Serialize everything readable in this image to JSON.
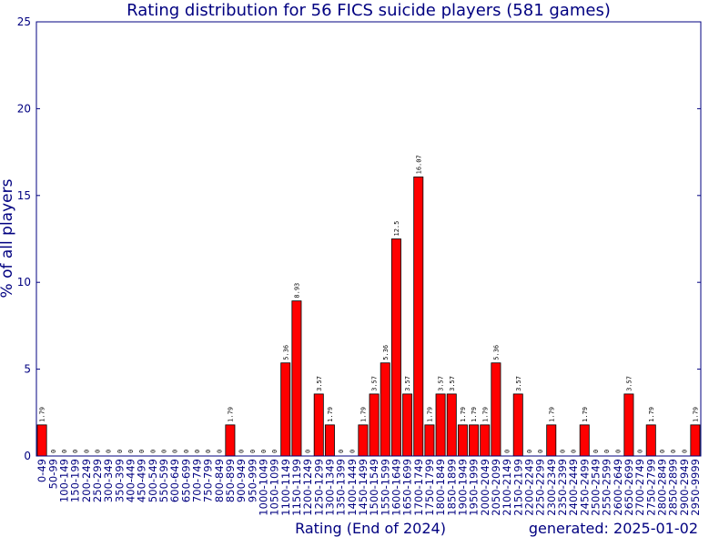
{
  "chart_data": {
    "type": "bar",
    "title": "Rating distribution for 56 FICS suicide players (581 games)",
    "xlabel": "Rating (End of 2024)",
    "ylabel": "% of all players",
    "generated": "generated: 2025-01-02",
    "ylim": [
      0,
      25
    ],
    "yticks": [
      0,
      5,
      10,
      15,
      20,
      25
    ],
    "bar_color": "#ff0000",
    "axis_color": "#000080",
    "categories": [
      "0-49",
      "50-99",
      "100-149",
      "150-199",
      "200-249",
      "250-299",
      "300-349",
      "350-399",
      "400-449",
      "450-499",
      "500-549",
      "550-599",
      "600-649",
      "650-699",
      "700-749",
      "750-799",
      "800-849",
      "850-899",
      "900-949",
      "950-999",
      "1000-1049",
      "1050-1099",
      "1100-1149",
      "1150-1199",
      "1200-1249",
      "1250-1299",
      "1300-1349",
      "1350-1399",
      "1400-1449",
      "1450-1499",
      "1500-1549",
      "1550-1599",
      "1600-1649",
      "1650-1699",
      "1700-1749",
      "1750-1799",
      "1800-1849",
      "1850-1899",
      "1900-1949",
      "1950-1999",
      "2000-2049",
      "2050-2099",
      "2100-2149",
      "2150-2199",
      "2200-2249",
      "2250-2299",
      "2300-2349",
      "2350-2399",
      "2400-2449",
      "2450-2499",
      "2500-2549",
      "2550-2599",
      "2600-2649",
      "2650-2699",
      "2700-2749",
      "2750-2799",
      "2800-2849",
      "2850-2899",
      "2900-2949",
      "2950-9999"
    ],
    "values": [
      1.79,
      0,
      0,
      0,
      0,
      0,
      0,
      0,
      0,
      0,
      0,
      0,
      0,
      0,
      0,
      0,
      0,
      1.79,
      0,
      0,
      0,
      0,
      5.36,
      8.93,
      0,
      3.57,
      1.79,
      0,
      0,
      1.79,
      3.57,
      5.36,
      12.5,
      3.57,
      16.07,
      1.79,
      3.57,
      3.57,
      1.79,
      1.79,
      1.79,
      5.36,
      0,
      3.57,
      0,
      0,
      1.79,
      0,
      0,
      1.79,
      0,
      0,
      0,
      3.57,
      0,
      1.79,
      0,
      0,
      0,
      1.79
    ],
    "value_labels": [
      "1.79",
      "0",
      "0",
      "0",
      "0",
      "0",
      "0",
      "0",
      "0",
      "0",
      "0",
      "0",
      "0",
      "0",
      "0",
      "0",
      "0",
      "1.79",
      "0",
      "0",
      "0",
      "0",
      "5.36",
      "8.93",
      "0",
      "3.57",
      "1.79",
      "0",
      "0",
      "1.79",
      "3.57",
      "5.36",
      "12.5",
      "3.57",
      "16.07",
      "1.79",
      "3.57",
      "3.57",
      "1.79",
      "1.79",
      "1.79",
      "5.36",
      "0",
      "3.57",
      "0",
      "0",
      "1.79",
      "0",
      "0",
      "1.79",
      "0",
      "0",
      "0",
      "3.57",
      "0",
      "1.79",
      "0",
      "0",
      "0",
      "1.79"
    ]
  }
}
